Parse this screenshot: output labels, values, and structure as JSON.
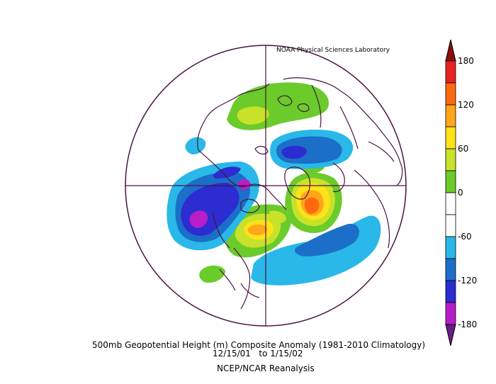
{
  "credit": "NOAA Physical Sciences Laboratory",
  "title_line1": "500mb Geopotential Height (m) Composite Anomaly (1981-2010 Climatology)",
  "title_line2": "12/15/01   to 1/15/02",
  "title_line3": "NCEP/NCAR Reanalysis",
  "colorbar": {
    "labels": [
      "180",
      "120",
      "60",
      "0",
      "-60",
      "-120",
      "-180"
    ],
    "colors": [
      "#8b0e0e",
      "#e8231f",
      "#ff6a10",
      "#ffa61a",
      "#ffe21a",
      "#c8e22a",
      "#6acb2a",
      "#ffffff",
      "#ffffff",
      "#29b8e8",
      "#1c6fc8",
      "#2c2cd0",
      "#b81ec8",
      "#6a1a8a"
    ]
  },
  "colors": {
    "map_lines": "#4a1240",
    "land_outline": "#000000"
  }
}
